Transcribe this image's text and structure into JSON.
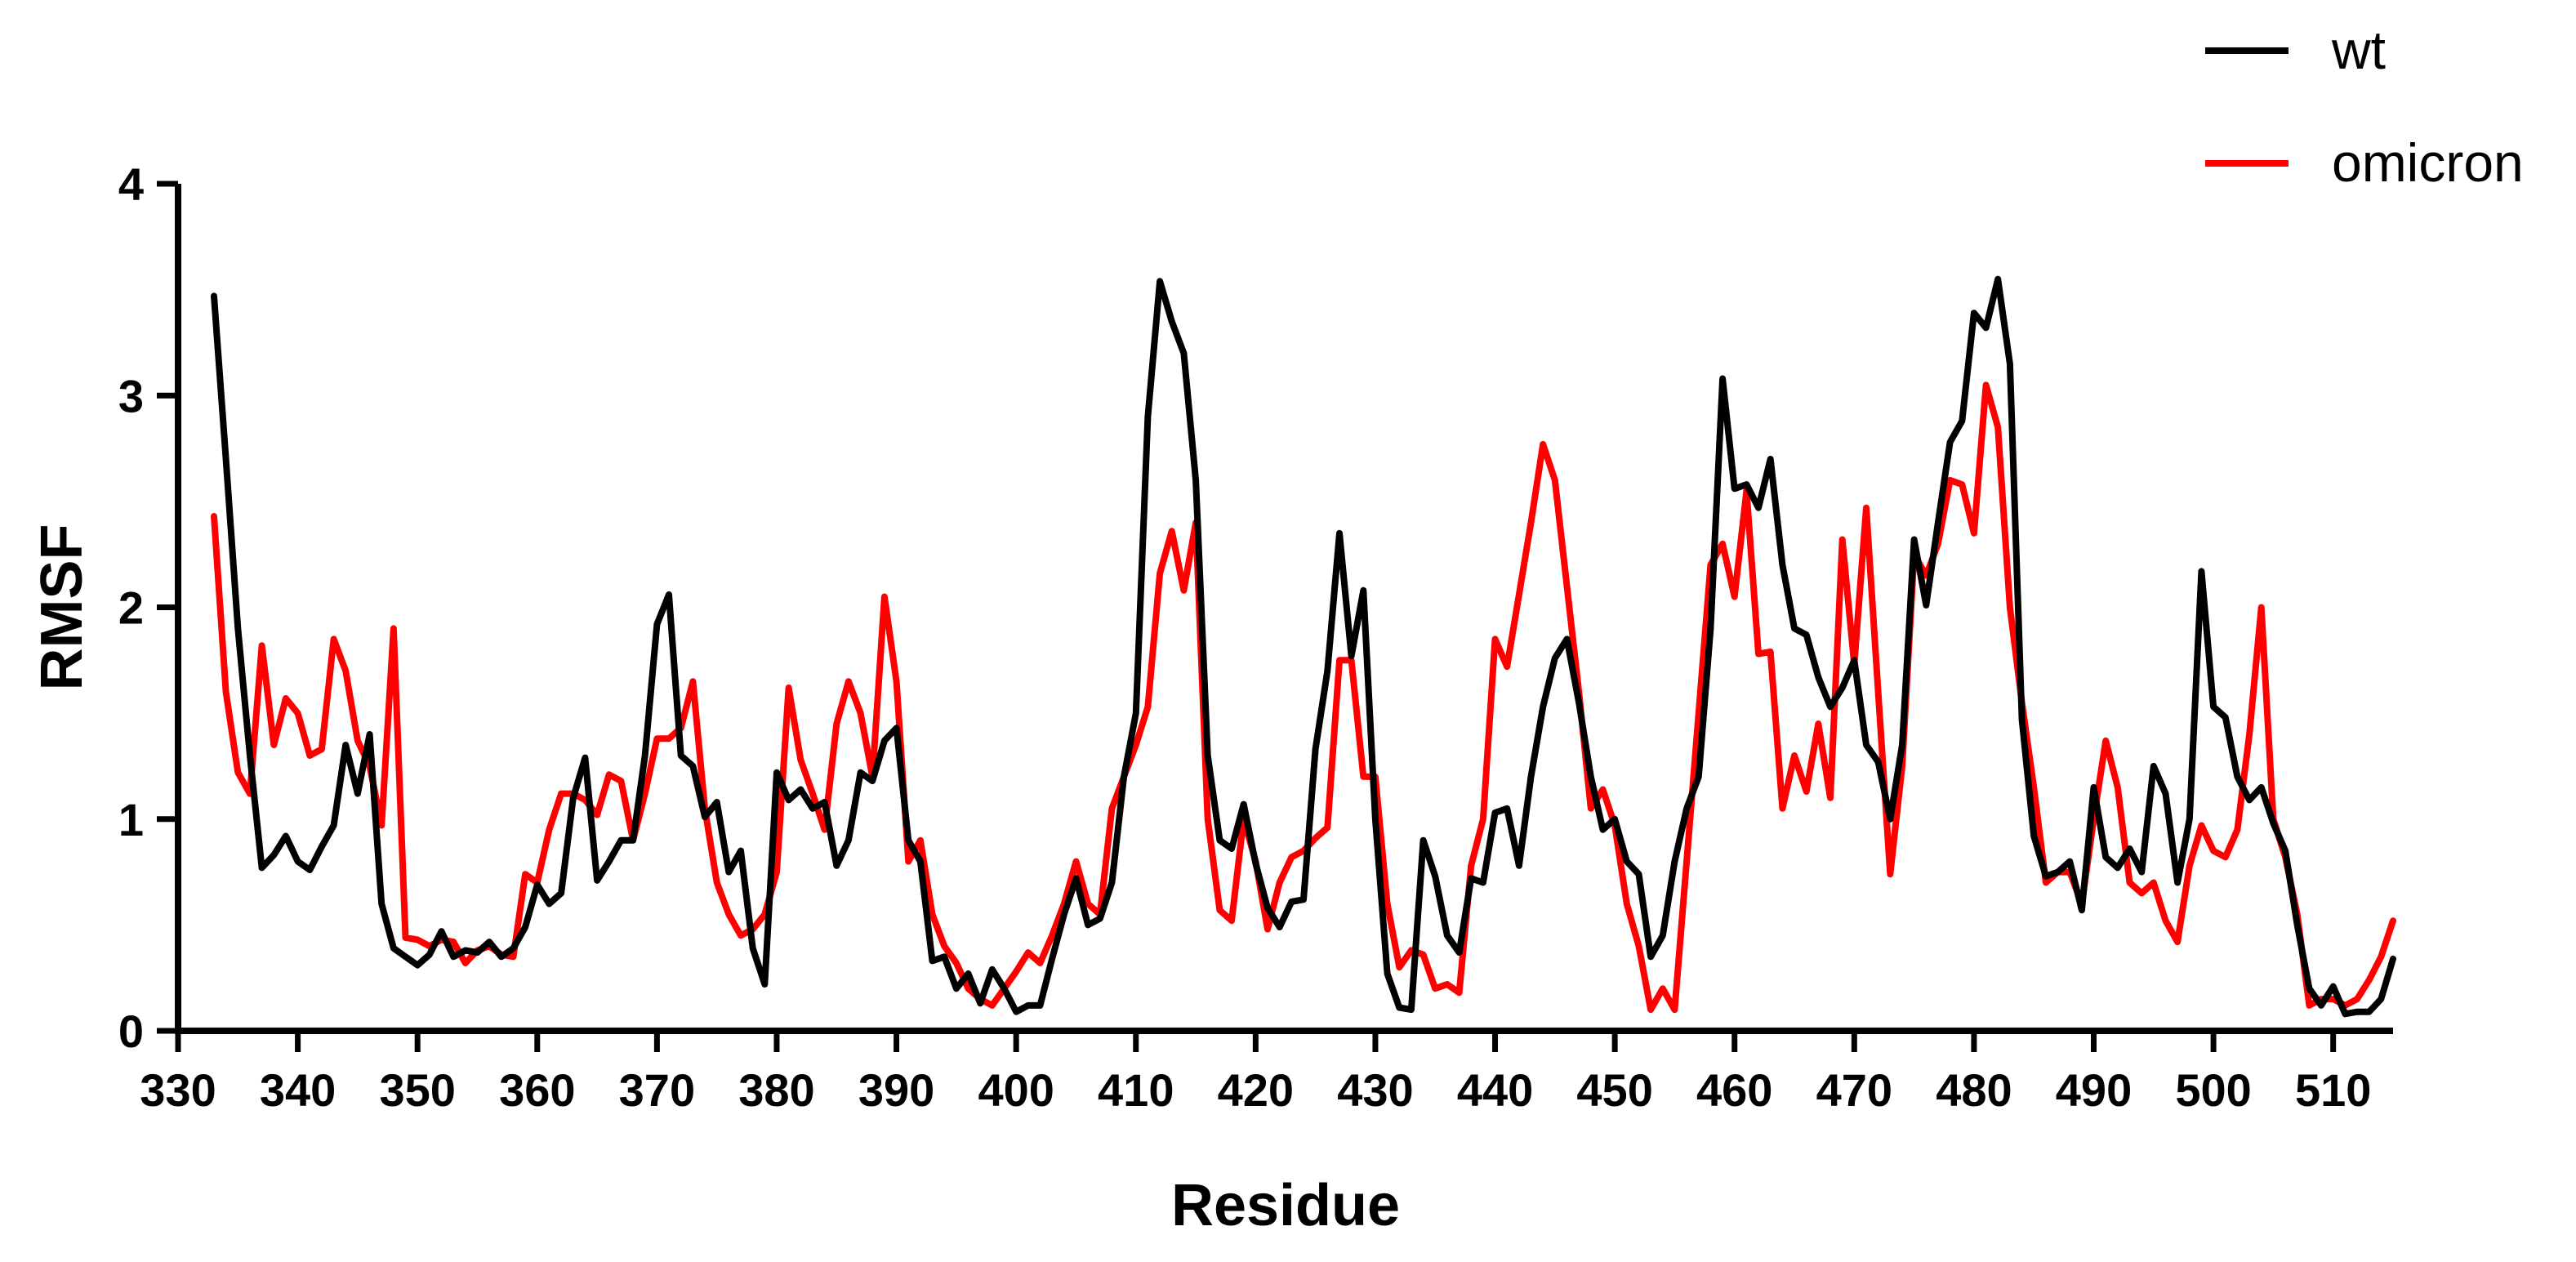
{
  "chart_data": {
    "type": "line",
    "title": "",
    "xlabel": "Residue",
    "ylabel": "RMSF",
    "xlim": [
      330,
      515
    ],
    "ylim": [
      0,
      4
    ],
    "x_ticks": [
      330,
      340,
      350,
      360,
      370,
      380,
      390,
      400,
      410,
      420,
      430,
      440,
      450,
      460,
      470,
      480,
      490,
      500,
      510
    ],
    "y_ticks": [
      0,
      1,
      2,
      3,
      4
    ],
    "x_tick_labels": [
      "330",
      "340",
      "350",
      "360",
      "370",
      "380",
      "390",
      "400",
      "410",
      "420",
      "430",
      "440",
      "450",
      "460",
      "470",
      "480",
      "490",
      "500",
      "510"
    ],
    "y_tick_labels": [
      "0",
      "1",
      "2",
      "3",
      "4"
    ],
    "grid": false,
    "legend": {
      "position": "top-right"
    },
    "x_start": 333,
    "series": [
      {
        "name": "wt",
        "color": "#000000",
        "values": [
          3.47,
          2.7,
          1.9,
          1.3,
          0.77,
          0.83,
          0.92,
          0.8,
          0.76,
          0.87,
          0.97,
          1.35,
          1.12,
          1.4,
          0.6,
          0.39,
          0.35,
          0.31,
          0.36,
          0.47,
          0.35,
          0.38,
          0.37,
          0.42,
          0.35,
          0.39,
          0.49,
          0.69,
          0.6,
          0.65,
          1.1,
          1.29,
          0.71,
          0.8,
          0.9,
          0.9,
          1.3,
          1.92,
          2.06,
          1.3,
          1.25,
          1.01,
          1.08,
          0.75,
          0.85,
          0.39,
          0.22,
          1.22,
          1.09,
          1.14,
          1.05,
          1.08,
          0.78,
          0.9,
          1.22,
          1.18,
          1.37,
          1.43,
          0.9,
          0.8,
          0.33,
          0.35,
          0.2,
          0.27,
          0.13,
          0.29,
          0.2,
          0.09,
          0.12,
          0.12,
          0.34,
          0.55,
          0.72,
          0.5,
          0.53,
          0.7,
          1.2,
          1.5,
          2.9,
          3.54,
          3.35,
          3.2,
          2.6,
          1.3,
          0.9,
          0.86,
          1.07,
          0.79,
          0.58,
          0.49,
          0.61,
          0.62,
          1.33,
          1.7,
          2.35,
          1.77,
          2.08,
          1.0,
          0.27,
          0.11,
          0.1,
          0.9,
          0.73,
          0.45,
          0.37,
          0.72,
          0.7,
          1.03,
          1.05,
          0.78,
          1.2,
          1.53,
          1.76,
          1.85,
          1.55,
          1.2,
          0.95,
          1.0,
          0.8,
          0.74,
          0.35,
          0.45,
          0.8,
          1.05,
          1.2,
          1.9,
          3.08,
          2.56,
          2.58,
          2.47,
          2.7,
          2.2,
          1.9,
          1.87,
          1.67,
          1.53,
          1.62,
          1.75,
          1.35,
          1.27,
          1.0,
          1.35,
          2.32,
          2.01,
          2.4,
          2.78,
          2.88,
          3.39,
          3.32,
          3.55,
          3.15,
          1.47,
          0.92,
          0.73,
          0.75,
          0.8,
          0.57,
          1.15,
          0.82,
          0.77,
          0.86,
          0.75,
          1.25,
          1.12,
          0.7,
          1.0,
          2.17,
          1.53,
          1.48,
          1.2,
          1.09,
          1.15,
          0.98,
          0.85,
          0.5,
          0.2,
          0.12,
          0.21,
          0.08,
          0.09,
          0.09,
          0.15,
          0.34
        ]
      },
      {
        "name": "omicron",
        "color": "#ff0000",
        "values": [
          2.43,
          1.6,
          1.22,
          1.12,
          1.82,
          1.35,
          1.57,
          1.5,
          1.3,
          1.33,
          1.85,
          1.7,
          1.37,
          1.25,
          0.97,
          1.9,
          0.44,
          0.43,
          0.4,
          0.43,
          0.42,
          0.32,
          0.38,
          0.4,
          0.36,
          0.35,
          0.74,
          0.7,
          0.95,
          1.12,
          1.12,
          1.09,
          1.02,
          1.21,
          1.18,
          0.9,
          1.12,
          1.38,
          1.38,
          1.43,
          1.65,
          1.05,
          0.7,
          0.55,
          0.45,
          0.48,
          0.55,
          0.75,
          1.62,
          1.28,
          1.12,
          0.95,
          1.45,
          1.65,
          1.5,
          1.2,
          2.05,
          1.65,
          0.8,
          0.9,
          0.55,
          0.4,
          0.32,
          0.2,
          0.15,
          0.12,
          0.2,
          0.28,
          0.37,
          0.32,
          0.45,
          0.6,
          0.8,
          0.6,
          0.55,
          1.05,
          1.2,
          1.35,
          1.53,
          2.16,
          2.36,
          2.08,
          2.4,
          1.0,
          0.57,
          0.52,
          1.0,
          0.8,
          0.48,
          0.7,
          0.82,
          0.85,
          0.91,
          0.96,
          1.75,
          1.75,
          1.2,
          1.2,
          0.6,
          0.3,
          0.38,
          0.36,
          0.2,
          0.22,
          0.18,
          0.78,
          1.0,
          1.85,
          1.72,
          2.06,
          2.4,
          2.77,
          2.6,
          2.1,
          1.6,
          1.05,
          1.14,
          0.97,
          0.6,
          0.4,
          0.1,
          0.2,
          0.1,
          0.8,
          1.5,
          2.2,
          2.3,
          2.05,
          2.55,
          1.78,
          1.79,
          1.05,
          1.3,
          1.13,
          1.45,
          1.1,
          2.32,
          1.73,
          2.47,
          1.6,
          0.74,
          1.25,
          2.25,
          2.15,
          2.3,
          2.6,
          2.58,
          2.35,
          3.05,
          2.85,
          2.0,
          1.55,
          1.15,
          0.7,
          0.75,
          0.75,
          0.6,
          1.0,
          1.37,
          1.15,
          0.7,
          0.65,
          0.7,
          0.52,
          0.42,
          0.78,
          0.97,
          0.85,
          0.82,
          0.95,
          1.4,
          2.0,
          1.0,
          0.82,
          0.55,
          0.12,
          0.15,
          0.15,
          0.12,
          0.15,
          0.24,
          0.35,
          0.52
        ]
      }
    ]
  }
}
